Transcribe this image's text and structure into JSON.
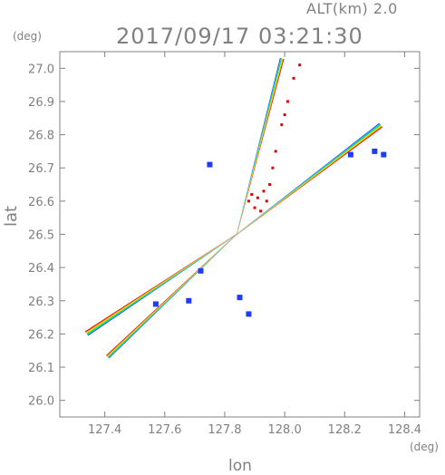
{
  "header": {
    "altitude": "ALT(km)  2.0",
    "timestamp": "2017/09/17  03:21:30"
  },
  "chart_data": {
    "type": "scatter",
    "title": "2017/09/17  03:21:30",
    "xlabel": "lon",
    "ylabel": "lat",
    "x_unit": "(deg)",
    "y_unit": "(deg)",
    "xlim": [
      127.25,
      128.45
    ],
    "ylim": [
      25.95,
      27.05
    ],
    "xticks": [
      127.4,
      127.6,
      127.8,
      128.0,
      128.2,
      128.4
    ],
    "xtick_labels": [
      "127.4",
      "127.6",
      "127.8",
      "128.0",
      "128.2",
      "128.4"
    ],
    "yticks": [
      26.0,
      26.1,
      26.2,
      26.3,
      26.4,
      26.5,
      26.6,
      26.7,
      26.8,
      26.9,
      27.0
    ],
    "ytick_labels": [
      "26.0",
      "26.1",
      "26.2",
      "26.3",
      "26.4",
      "26.5",
      "26.6",
      "26.7",
      "26.8",
      "26.9",
      "27.0"
    ],
    "radar_center": [
      127.84,
      26.5
    ],
    "grid": false,
    "colors": {
      "axis": "#808080",
      "echo_blue": "#1e3cff",
      "echo_cyan": "#00c8ff",
      "echo_green": "#00e600",
      "echo_yellow": "#e6f000",
      "echo_orange": "#ff8c00",
      "echo_red": "#e60000"
    },
    "beams": [
      {
        "name": "beam-sw-upper",
        "start": [
          127.84,
          26.5
        ],
        "end": [
          127.34,
          26.2
        ],
        "width_km": 2.0
      },
      {
        "name": "beam-sw-lower",
        "start": [
          127.84,
          26.5
        ],
        "end": [
          127.41,
          26.13
        ],
        "width_km": 1.6
      },
      {
        "name": "beam-ne",
        "start": [
          127.84,
          26.5
        ],
        "end": [
          128.32,
          26.83
        ],
        "width_km": 2.0
      },
      {
        "name": "beam-nne",
        "start": [
          127.84,
          26.5
        ],
        "end": [
          127.99,
          27.03
        ],
        "width_km": 1.6
      }
    ],
    "red_echo_points": [
      [
        127.88,
        26.6
      ],
      [
        127.9,
        26.58
      ],
      [
        127.91,
        26.61
      ],
      [
        127.93,
        26.63
      ],
      [
        127.92,
        26.57
      ],
      [
        127.95,
        26.65
      ],
      [
        127.97,
        26.75
      ],
      [
        127.99,
        26.83
      ],
      [
        128.01,
        26.9
      ],
      [
        128.03,
        26.97
      ],
      [
        128.05,
        27.01
      ],
      [
        127.89,
        26.62
      ],
      [
        127.94,
        26.6
      ],
      [
        127.96,
        26.7
      ],
      [
        128.0,
        26.86
      ]
    ],
    "blue_echo_points": [
      [
        128.22,
        26.74
      ],
      [
        128.3,
        26.75
      ],
      [
        128.33,
        26.74
      ],
      [
        127.75,
        26.71
      ],
      [
        127.72,
        26.39
      ],
      [
        127.68,
        26.3
      ],
      [
        127.57,
        26.29
      ],
      [
        127.88,
        26.26
      ],
      [
        127.85,
        26.31
      ]
    ]
  }
}
